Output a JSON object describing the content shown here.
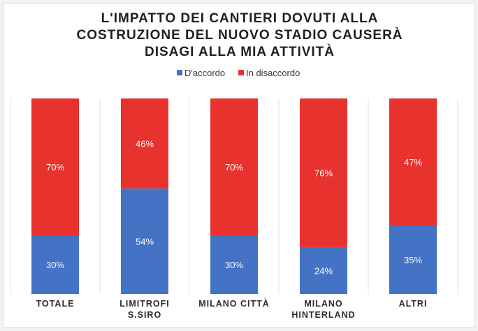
{
  "chart_data": {
    "type": "bar",
    "stacked": "100%",
    "title_lines": [
      "L'IMPATTO DEI CANTIERI DOVUTI ALLA",
      "COSTRUZIONE DEL NUOVO STADIO CAUSERÀ",
      "DISAGI ALLA MIA ATTIVITÀ"
    ],
    "categories": [
      [
        "TOTALE"
      ],
      [
        "LIMITROFI",
        "S.SIRO"
      ],
      [
        "MILANO CITTÀ"
      ],
      [
        "MILANO",
        "HINTERLAND"
      ],
      [
        "ALTRI"
      ]
    ],
    "series": [
      {
        "name": "D'accordo",
        "color": "#4472c4",
        "values": [
          30,
          54,
          30,
          24,
          35
        ],
        "labels": [
          "30%",
          "54%",
          "30%",
          "24%",
          "35%"
        ]
      },
      {
        "name": "In disaccordo",
        "color": "#e8322e",
        "values": [
          70,
          46,
          70,
          76,
          47
        ],
        "labels": [
          "70%",
          "46%",
          "70%",
          "76%",
          "47%"
        ]
      }
    ],
    "ylim": [
      0,
      100
    ],
    "legend_position": "top-center",
    "grid": false
  }
}
